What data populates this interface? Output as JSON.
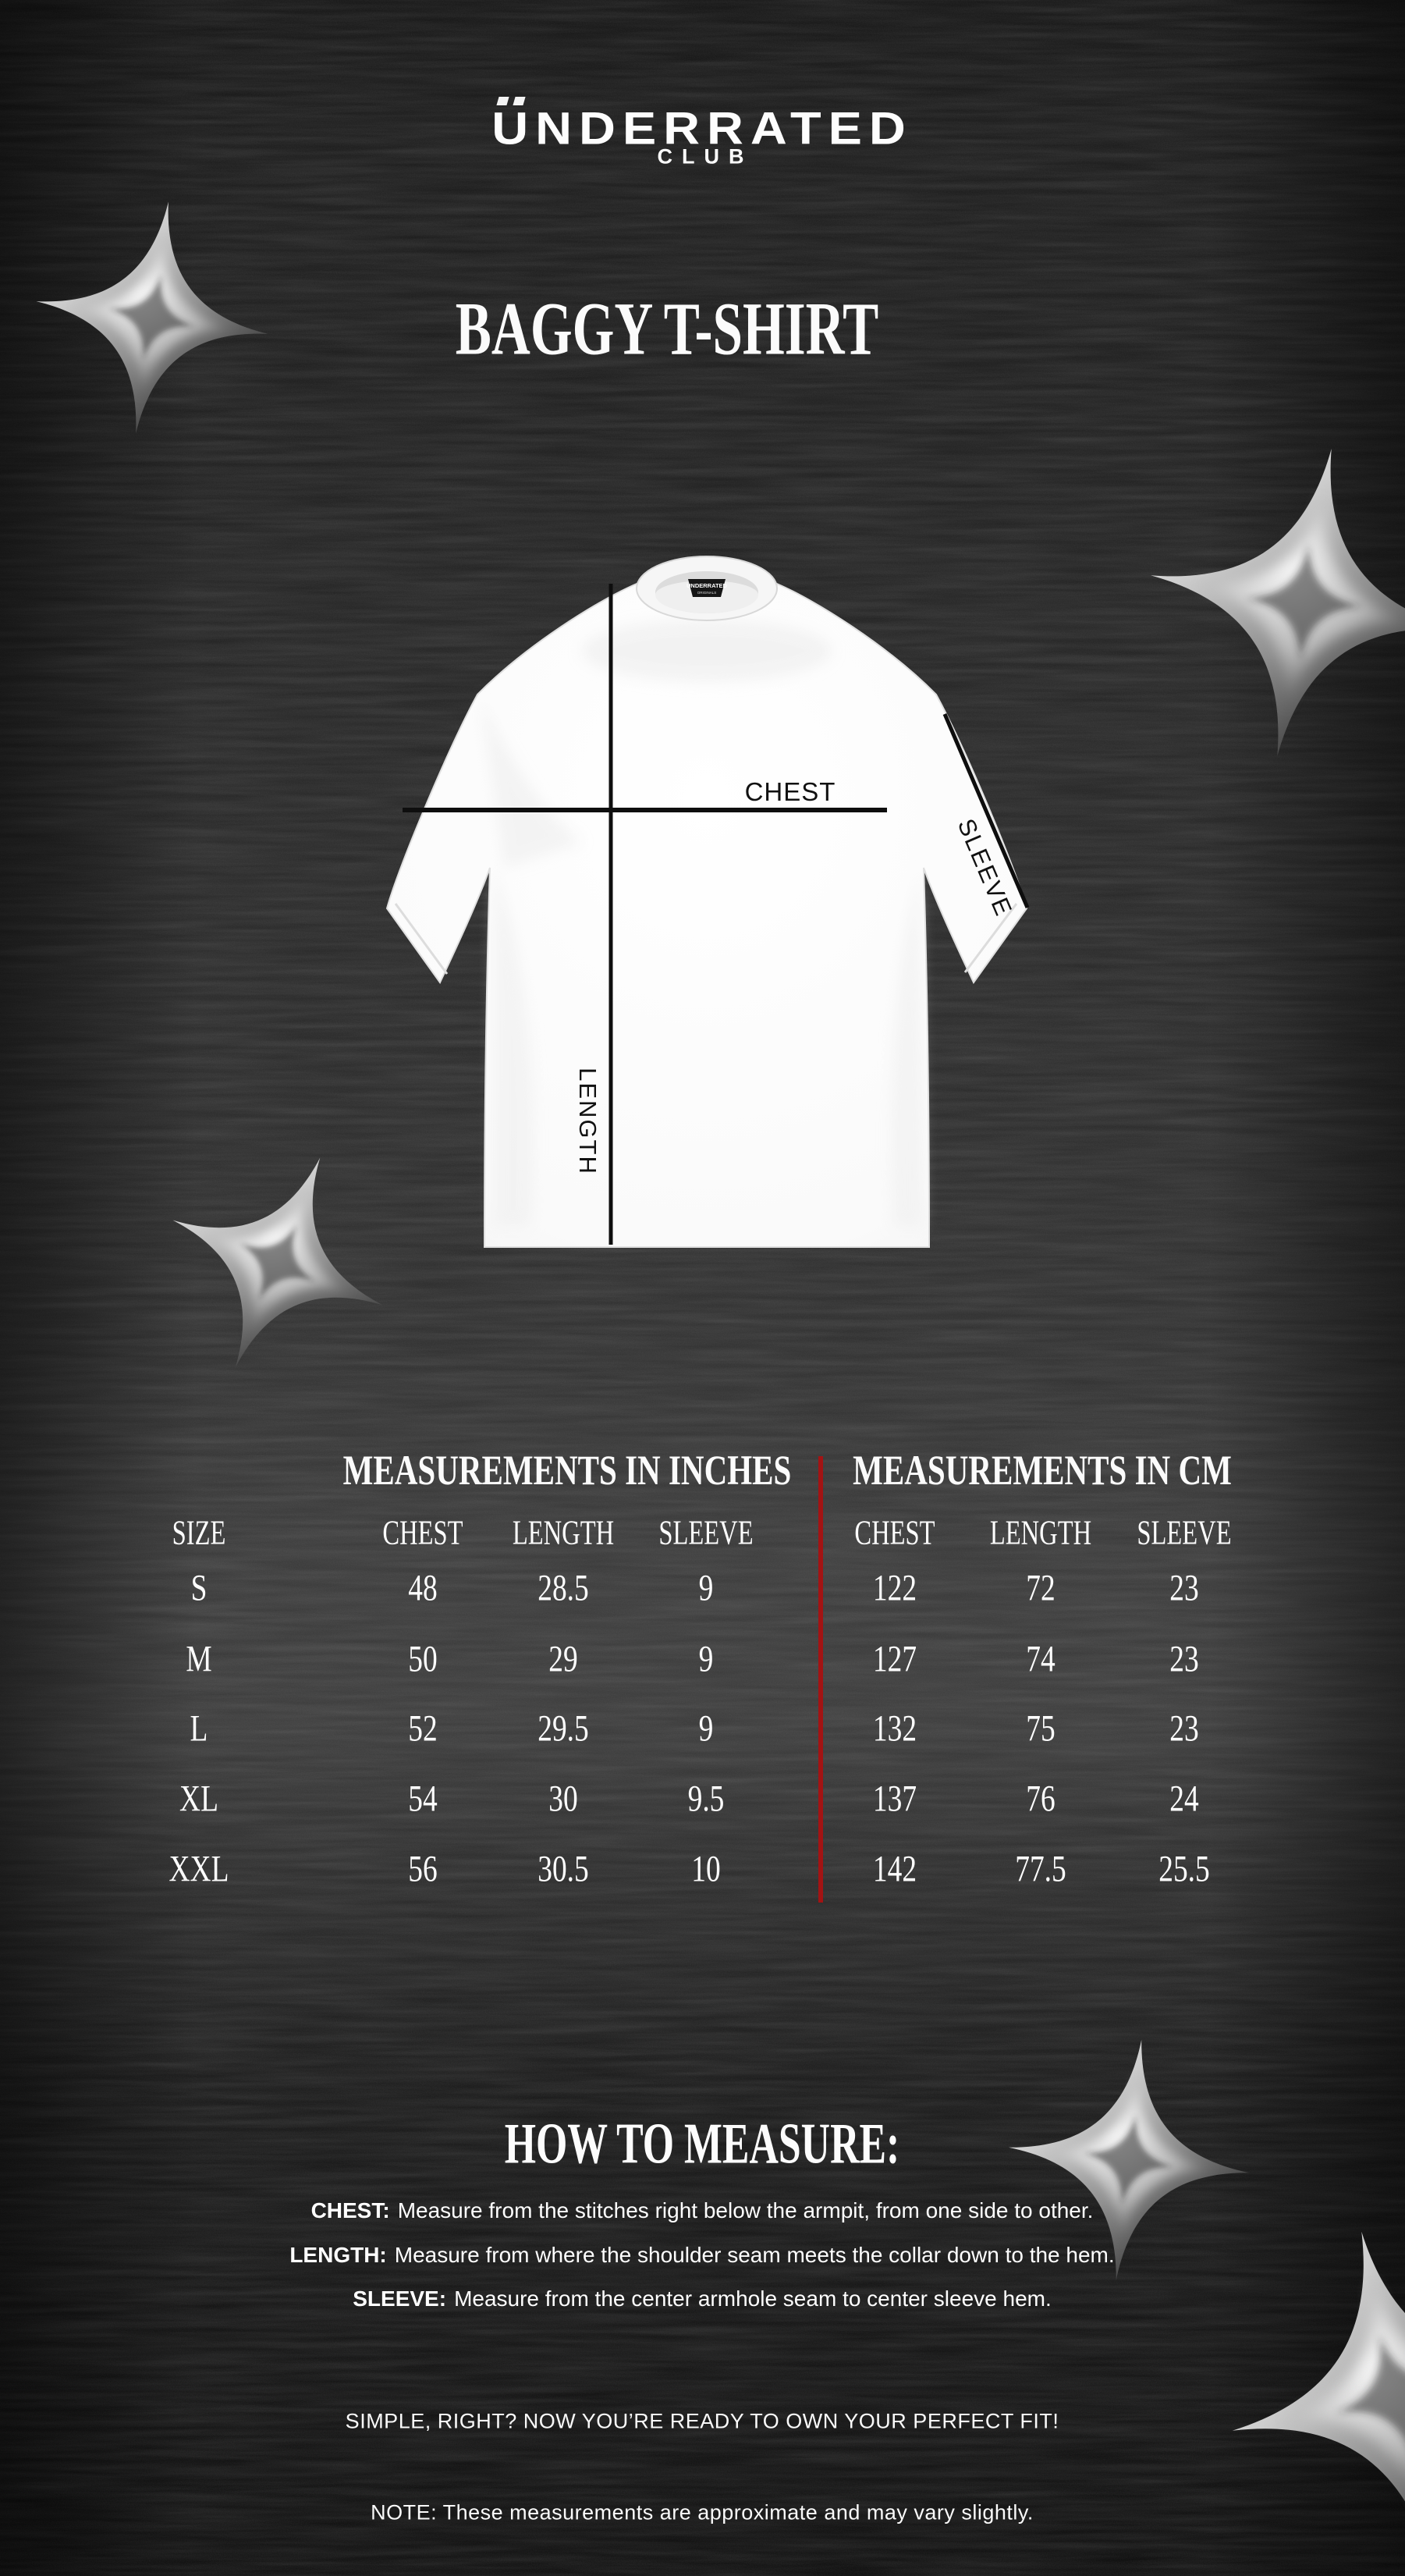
{
  "brand": {
    "name": "UNDERRATED",
    "sub": "CLUB"
  },
  "title": "BAGGY T-SHIRT",
  "shirt": {
    "chest_label": "CHEST",
    "length_label": "LENGTH",
    "sleeve_label": "SLEEVE",
    "collar_label_line1": "UNDERRATED",
    "collar_label_line2": "ORIGINALS"
  },
  "tables": {
    "size_column": {
      "header": "SIZE",
      "sizes": [
        "S",
        "M",
        "L",
        "XL",
        "XXL"
      ]
    },
    "inches": {
      "title": "MEASUREMENTS IN INCHES",
      "columns": [
        "CHEST",
        "LENGTH",
        "SLEEVE"
      ],
      "rows": [
        [
          "48",
          "28.5",
          "9"
        ],
        [
          "50",
          "29",
          "9"
        ],
        [
          "52",
          "29.5",
          "9"
        ],
        [
          "54",
          "30",
          "9.5"
        ],
        [
          "56",
          "30.5",
          "10"
        ]
      ]
    },
    "cm": {
      "title": "MEASUREMENTS IN CM",
      "columns": [
        "CHEST",
        "LENGTH",
        "SLEEVE"
      ],
      "rows": [
        [
          "122",
          "72",
          "23"
        ],
        [
          "127",
          "74",
          "23"
        ],
        [
          "132",
          "75",
          "23"
        ],
        [
          "137",
          "76",
          "24"
        ],
        [
          "142",
          "77.5",
          "25.5"
        ]
      ]
    }
  },
  "how_to_measure": {
    "heading": "HOW TO MEASURE:",
    "items": [
      {
        "label": "CHEST:",
        "text": "Measure from the stitches right below the armpit, from one side to other."
      },
      {
        "label": "LENGTH:",
        "text": "Measure from where the shoulder seam meets the collar down to the hem."
      },
      {
        "label": "SLEEVE:",
        "text": "Measure from the center armhole seam to center sleeve hem."
      }
    ]
  },
  "footer": {
    "line1": "SIMPLE, RIGHT? NOW YOU’RE READY TO OWN YOUR PERFECT FIT!",
    "line2": "NOTE: These measurements are approximate and may vary slightly."
  },
  "colors": {
    "background": "#141414",
    "text": "#f4f4f4",
    "divider_red": "#a31313",
    "shirt_white": "#fafafa",
    "measure_line": "#0e0e0e"
  }
}
